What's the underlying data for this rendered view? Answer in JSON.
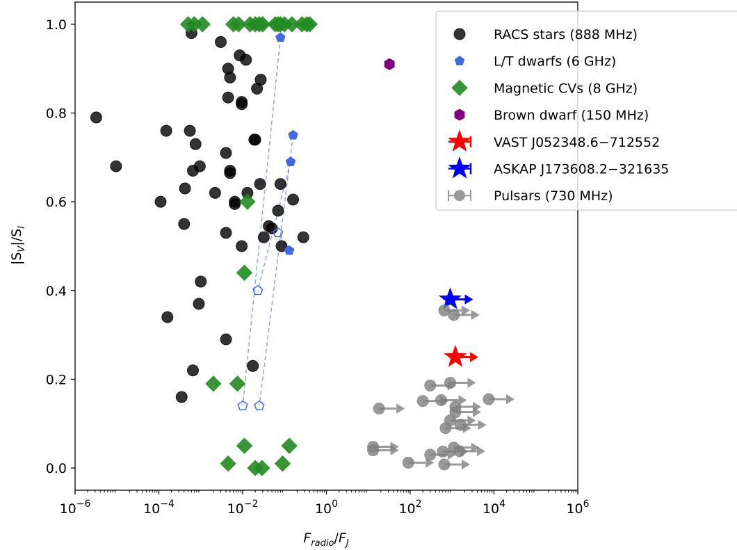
{
  "chart_data": {
    "type": "scatter",
    "xscale": "log",
    "xlim": [
      1e-06,
      1000000.0
    ],
    "ylim": [
      -0.05,
      1.05
    ],
    "xlabel": {
      "base": "F",
      "sub": "radio",
      "sep": "/",
      "base2": "F",
      "sub2": "J"
    },
    "ylabel": {
      "pre": "|S",
      "sub": "V",
      "mid": "|/S",
      "sub2": "I"
    },
    "xticks": [
      {
        "value": 1e-06,
        "base": "10",
        "exp": "−6"
      },
      {
        "value": 0.0001,
        "base": "10",
        "exp": "−4"
      },
      {
        "value": 0.01,
        "base": "10",
        "exp": "−2"
      },
      {
        "value": 1,
        "base": "10",
        "exp": "0"
      },
      {
        "value": 100.0,
        "base": "10",
        "exp": "2"
      },
      {
        "value": 10000.0,
        "base": "10",
        "exp": "4"
      },
      {
        "value": 1000000.0,
        "base": "10",
        "exp": "6"
      }
    ],
    "yticks": [
      {
        "value": 0.0,
        "label": "0.0"
      },
      {
        "value": 0.2,
        "label": "0.2"
      },
      {
        "value": 0.4,
        "label": "0.4"
      },
      {
        "value": 0.6,
        "label": "0.6"
      },
      {
        "value": 0.8,
        "label": "0.8"
      },
      {
        "value": 1.0,
        "label": "1.0"
      }
    ],
    "grid": false,
    "legend_position": "top-right",
    "series": [
      {
        "name": "RACS stars (888 MHz)",
        "marker": "circle",
        "color": "#000000",
        "alpha": 0.8,
        "points": [
          [
            3.2e-06,
            0.79
          ],
          [
            9.5e-06,
            0.68
          ],
          [
            0.00011,
            0.6
          ],
          [
            0.00015,
            0.76
          ],
          [
            0.00035,
            0.16
          ],
          [
            0.0004,
            0.55
          ],
          [
            0.00042,
            0.63
          ],
          [
            0.00016,
            0.34
          ],
          [
            0.00055,
            0.76
          ],
          [
            0.0006,
            0.98
          ],
          [
            0.00065,
            0.67
          ],
          [
            0.00075,
            0.73
          ],
          [
            0.00065,
            0.22
          ],
          [
            0.0009,
            0.37
          ],
          [
            0.00095,
            0.68
          ],
          [
            0.001,
            0.42
          ],
          [
            0.0022,
            0.62
          ],
          [
            0.003,
            0.96
          ],
          [
            0.004,
            0.53
          ],
          [
            0.004,
            0.71
          ],
          [
            0.004,
            0.29
          ],
          [
            0.0045,
            0.835
          ],
          [
            0.0045,
            0.9
          ],
          [
            0.005,
            0.88
          ],
          [
            0.005,
            0.67
          ],
          [
            0.005,
            0.665
          ],
          [
            0.0065,
            0.6
          ],
          [
            0.0065,
            0.595
          ],
          [
            0.0085,
            0.93
          ],
          [
            0.0095,
            0.825
          ],
          [
            0.0095,
            0.82
          ],
          [
            0.0095,
            0.5
          ],
          [
            0.012,
            0.92
          ],
          [
            0.013,
            0.62
          ],
          [
            0.0175,
            0.23
          ],
          [
            0.019,
            0.74
          ],
          [
            0.02,
            0.74
          ],
          [
            0.022,
            0.855
          ],
          [
            0.026,
            0.64
          ],
          [
            0.027,
            0.875
          ],
          [
            0.032,
            0.52
          ],
          [
            0.042,
            0.545
          ],
          [
            0.05,
            0.54
          ],
          [
            0.07,
            0.58
          ],
          [
            0.08,
            0.64
          ],
          [
            0.085,
            0.5
          ],
          [
            0.16,
            0.605
          ],
          [
            0.28,
            0.52
          ]
        ]
      },
      {
        "name": "L/T dwarfs (6 GHz)",
        "marker": "pentagon",
        "color": "#4169e1",
        "points": [
          [
            0.08,
            0.97
          ],
          [
            0.16,
            0.75
          ],
          [
            0.14,
            0.69
          ],
          [
            0.13,
            0.49
          ]
        ],
        "open_points": [
          [
            0.01,
            0.14
          ],
          [
            0.025,
            0.14
          ],
          [
            0.023,
            0.4
          ],
          [
            0.07,
            0.53
          ]
        ],
        "links": [
          [
            [
              0.08,
              0.97
            ],
            [
              0.01,
              0.14
            ]
          ],
          [
            [
              0.16,
              0.75
            ],
            [
              0.025,
              0.14
            ]
          ],
          [
            [
              0.14,
              0.69
            ],
            [
              0.023,
              0.4
            ]
          ],
          [
            [
              0.13,
              0.49
            ],
            [
              0.07,
              0.53
            ]
          ]
        ]
      },
      {
        "name": "Magnetic CVs (8 GHz)",
        "marker": "diamond",
        "color": "#228b22",
        "alpha": 0.9,
        "points": [
          [
            0.0005,
            1.0
          ],
          [
            0.0007,
            1.0
          ],
          [
            0.0011,
            1.0
          ],
          [
            0.006,
            1.0
          ],
          [
            0.008,
            1.0
          ],
          [
            0.015,
            1.0
          ],
          [
            0.02,
            1.0
          ],
          [
            0.025,
            1.0
          ],
          [
            0.03,
            1.0
          ],
          [
            0.06,
            1.0
          ],
          [
            0.07,
            1.0
          ],
          [
            0.08,
            1.0
          ],
          [
            0.1,
            1.0
          ],
          [
            0.15,
            1.0
          ],
          [
            0.26,
            1.0
          ],
          [
            0.34,
            1.0
          ],
          [
            0.4,
            1.0
          ],
          [
            0.013,
            0.6
          ],
          [
            0.011,
            0.44
          ],
          [
            0.002,
            0.19
          ],
          [
            0.0075,
            0.19
          ],
          [
            0.011,
            0.05
          ],
          [
            0.13,
            0.05
          ],
          [
            0.0045,
            0.01
          ],
          [
            0.09,
            0.01
          ],
          [
            0.02,
            0.0
          ],
          [
            0.029,
            0.0
          ]
        ]
      },
      {
        "name": "Brown dwarf (150 MHz)",
        "marker": "hexagon",
        "color": "#800080",
        "points": [
          [
            32,
            0.91
          ]
        ]
      },
      {
        "name": "VAST J052348.6−712552",
        "marker": "star",
        "color": "#ff0000",
        "lower_limit": true,
        "points": [
          [
            1200,
            0.25
          ]
        ]
      },
      {
        "name": "ASKAP J173608.2−321635",
        "marker": "star",
        "color": "#0000ff",
        "lower_limit": true,
        "points": [
          [
            900,
            0.38
          ]
        ]
      },
      {
        "name": "Pulsars (730 MHz)",
        "marker": "circle",
        "color": "#808080",
        "alpha": 0.8,
        "lower_limit": true,
        "points": [
          [
            650,
            0.355
          ],
          [
            1100,
            0.345
          ],
          [
            900,
            0.192
          ],
          [
            300,
            0.186
          ],
          [
            18,
            0.134
          ],
          [
            200,
            0.151
          ],
          [
            550,
            0.153
          ],
          [
            1200,
            0.138
          ],
          [
            1200,
            0.126
          ],
          [
            7500,
            0.155
          ],
          [
            900,
            0.107
          ],
          [
            1600,
            0.097
          ],
          [
            700,
            0.09
          ],
          [
            13,
            0.048
          ],
          [
            13,
            0.04
          ],
          [
            300,
            0.03
          ],
          [
            600,
            0.037
          ],
          [
            1100,
            0.046
          ],
          [
            1500,
            0.038
          ],
          [
            90,
            0.012
          ],
          [
            650,
            0.008
          ]
        ]
      }
    ]
  }
}
